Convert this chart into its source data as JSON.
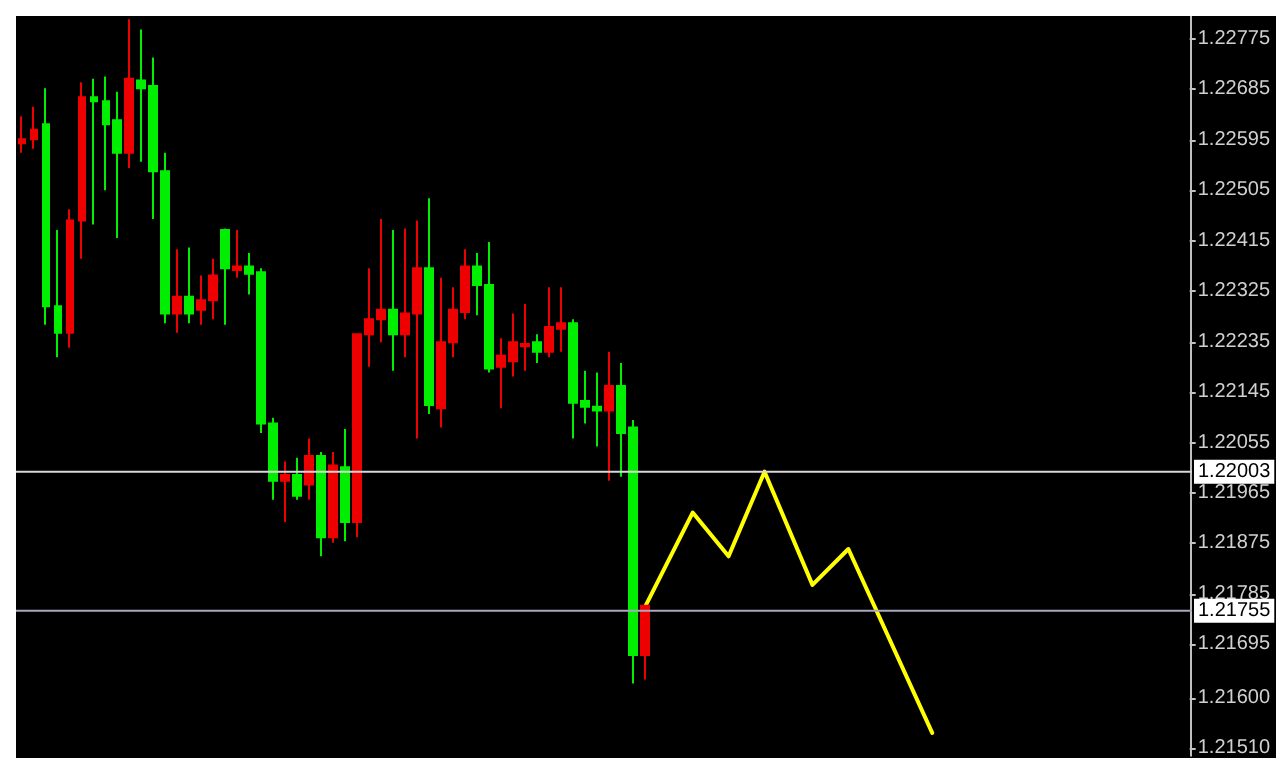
{
  "chart_data": {
    "type": "candlestick",
    "categories": [
      null,
      null,
      null,
      null,
      null,
      null,
      null,
      null,
      null,
      null,
      null,
      null,
      null,
      null,
      null,
      null,
      null,
      null,
      null,
      null,
      null,
      null,
      null,
      null,
      null,
      null,
      null,
      null,
      null,
      null,
      null,
      null,
      null,
      null,
      null,
      null,
      null,
      null,
      null,
      null,
      null,
      null,
      null,
      null,
      null,
      null,
      null,
      null,
      null,
      null,
      null,
      null,
      null,
      null,
      null,
      null,
      null,
      null,
      null,
      null,
      null,
      null,
      null,
      null,
      null,
      null,
      null,
      null,
      null,
      null,
      null,
      null,
      null,
      null,
      null,
      null,
      null,
      null,
      null,
      null,
      null,
      null,
      null,
      null,
      null,
      null,
      null,
      null,
      null,
      null,
      null,
      null,
      null,
      null,
      null,
      null,
      null,
      null
    ],
    "ohlc": [
      [
        1.22596,
        1.22637,
        1.22572,
        1.22589
      ],
      [
        1.22613,
        1.22654,
        1.22579,
        1.22596
      ],
      [
        1.22298,
        1.22687,
        1.22265,
        1.22623
      ],
      [
        1.22251,
        1.22434,
        1.22207,
        1.22298
      ],
      [
        1.22451,
        1.22471,
        1.22224,
        1.22251
      ],
      [
        1.22671,
        1.22698,
        1.22383,
        1.22451
      ],
      [
        1.22664,
        1.22704,
        1.22444,
        1.22671
      ],
      [
        1.22623,
        1.22708,
        1.22505,
        1.22664
      ],
      [
        1.22572,
        1.22681,
        1.2242,
        1.2263
      ],
      [
        1.22704,
        1.2281,
        1.22545,
        1.22572
      ],
      [
        1.22687,
        1.22792,
        1.22556,
        1.22701
      ],
      [
        1.22539,
        1.22742,
        1.22454,
        1.22691
      ],
      [
        1.22285,
        1.22572,
        1.22268,
        1.22539
      ],
      [
        1.22315,
        1.224,
        1.22251,
        1.22285
      ],
      [
        1.22285,
        1.22403,
        1.22268,
        1.22315
      ],
      [
        1.22309,
        1.22353,
        1.22265,
        1.22292
      ],
      [
        1.22353,
        1.22383,
        1.22275,
        1.22309
      ],
      [
        1.22366,
        1.22437,
        1.22265,
        1.22434
      ],
      [
        1.22369,
        1.22434,
        1.22349,
        1.22363
      ],
      [
        1.22356,
        1.22393,
        1.22319,
        1.22369
      ],
      [
        1.22089,
        1.22366,
        1.22072,
        1.22359
      ],
      [
        1.21987,
        1.22099,
        1.21953,
        1.22089
      ],
      [
        1.21997,
        1.22021,
        1.21913,
        1.21987
      ],
      [
        1.2196,
        1.22028,
        1.21953,
        1.21997
      ],
      [
        1.22031,
        1.22062,
        1.21953,
        1.2198
      ],
      [
        1.21886,
        1.22038,
        1.21852,
        1.22031
      ],
      [
        1.22014,
        1.22038,
        1.21876,
        1.21886
      ],
      [
        1.21913,
        1.22079,
        1.21879,
        1.22011
      ],
      [
        1.22248,
        1.22248,
        1.21886,
        1.21913
      ],
      [
        1.22275,
        1.22366,
        1.2219,
        1.22248
      ],
      [
        1.22292,
        1.22454,
        1.22234,
        1.22275
      ],
      [
        1.22248,
        1.22434,
        1.22183,
        1.22292
      ],
      [
        1.22285,
        1.22437,
        1.22207,
        1.22248
      ],
      [
        1.22366,
        1.22451,
        1.22062,
        1.22285
      ],
      [
        1.22122,
        1.22491,
        1.22106,
        1.22366
      ],
      [
        1.22234,
        1.22349,
        1.22082,
        1.22116
      ],
      [
        1.22292,
        1.22332,
        1.22207,
        1.22234
      ],
      [
        1.22369,
        1.224,
        1.22275,
        1.22288
      ],
      [
        1.22336,
        1.22393,
        1.22282,
        1.22369
      ],
      [
        1.22187,
        1.22413,
        1.2218,
        1.22336
      ],
      [
        1.2221,
        1.22241,
        1.22116,
        1.2219
      ],
      [
        1.22234,
        1.22285,
        1.22173,
        1.222
      ],
      [
        1.22231,
        1.22302,
        1.22183,
        1.22227
      ],
      [
        1.22217,
        1.22248,
        1.22197,
        1.22234
      ],
      [
        1.22261,
        1.22332,
        1.22207,
        1.22217
      ],
      [
        1.22268,
        1.22332,
        1.22217,
        1.22258
      ],
      [
        1.22126,
        1.22275,
        1.22062,
        1.22268
      ],
      [
        1.22119,
        1.22183,
        1.22089,
        1.22129
      ],
      [
        1.22112,
        1.2218,
        1.22048,
        1.22119
      ],
      [
        1.22156,
        1.22217,
        1.21987,
        1.22112
      ],
      [
        1.22072,
        1.22197,
        1.21994,
        1.22156
      ],
      [
        1.21676,
        1.22095,
        1.21625,
        1.22082
      ],
      [
        1.21764,
        1.21764,
        1.21632,
        1.21676
      ],
      null,
      null,
      null,
      null,
      null,
      null,
      null,
      null,
      null,
      null,
      null,
      null,
      null,
      null,
      null,
      null,
      null,
      null,
      null,
      null,
      null,
      null,
      null,
      null,
      null,
      null,
      null,
      null,
      null,
      null,
      null,
      null,
      null,
      null,
      null,
      null,
      null,
      null,
      null,
      null,
      null,
      null,
      null,
      null,
      null
    ],
    "colors": [
      "#ee0000",
      "#ee0000",
      "#00ee00",
      "#00ee00",
      "#ee0000",
      "#ee0000",
      "#00ee00",
      "#00ee00",
      "#00ee00",
      "#ee0000",
      "#00ee00",
      "#00ee00",
      "#00ee00",
      "#ee0000",
      "#00ee00",
      "#ee0000",
      "#ee0000",
      "#00ee00",
      "#ee0000",
      "#00ee00",
      "#00ee00",
      "#00ee00",
      "#ee0000",
      "#00ee00",
      "#ee0000",
      "#00ee00",
      "#ee0000",
      "#00ee00",
      "#ee0000",
      "#ee0000",
      "#ee0000",
      "#00ee00",
      "#ee0000",
      "#ee0000",
      "#00ee00",
      "#ee0000",
      "#ee0000",
      "#ee0000",
      "#00ee00",
      "#00ee00",
      "#ee0000",
      "#ee0000",
      "#ee0000",
      "#00ee00",
      "#ee0000",
      "#ee0000",
      "#00ee00",
      "#00ee00",
      "#00ee00",
      "#ee0000",
      "#00ee00",
      "#00ee00",
      "#ee0000",
      null,
      null,
      null,
      null,
      null,
      null,
      null,
      null,
      null,
      null,
      null,
      null,
      null,
      null,
      null,
      null,
      null,
      null,
      null,
      null,
      null,
      null,
      null,
      null,
      null,
      null,
      null,
      null,
      null,
      null,
      null,
      null,
      null,
      null,
      null,
      null,
      null,
      null,
      null,
      null,
      null,
      null,
      null,
      null,
      null
    ],
    "series": [
      {
        "type": "line",
        "color": "#ffff00",
        "values": [
          null,
          null,
          null,
          null,
          null,
          null,
          null,
          null,
          null,
          null,
          null,
          null,
          null,
          null,
          null,
          null,
          null,
          null,
          null,
          null,
          null,
          null,
          null,
          null,
          null,
          null,
          null,
          null,
          null,
          null,
          null,
          null,
          null,
          null,
          null,
          null,
          null,
          null,
          null,
          null,
          null,
          null,
          null,
          null,
          null,
          null,
          null,
          null,
          null,
          null,
          null,
          null,
          1.21761,
          null,
          null,
          null,
          1.2193,
          null,
          null,
          1.21852,
          null,
          null,
          1.22003,
          null,
          null,
          null,
          1.21801,
          null,
          null,
          1.21865,
          null,
          null,
          null,
          null,
          null,
          null,
          1.21537,
          null,
          null,
          null,
          null,
          null,
          null,
          null,
          null,
          null,
          null,
          null,
          null,
          null,
          null,
          null,
          null,
          null,
          null,
          null,
          null,
          null
        ]
      }
    ],
    "ylim": [
      1.21496,
      1.22816
    ],
    "yticks": [
      1.22775,
      1.22685,
      1.22595,
      1.22505,
      1.22415,
      1.22325,
      1.22235,
      1.22145,
      1.22055,
      1.21965,
      1.21875,
      1.21785,
      1.21695,
      {
        "value": 1.216,
        "label": "1.21600"
      },
      {
        "value": 1.2151,
        "label": "1.21510"
      }
    ],
    "ref_lines": [
      {
        "axis": "y",
        "value": 1.22003,
        "label": "1.22003",
        "color": "#d8d8d8"
      },
      {
        "axis": "y",
        "value": 1.21755,
        "label": "1.21755",
        "color": "#a8a8c0"
      }
    ],
    "tick_labels": "y",
    "grid": false,
    "line_style": "solid"
  }
}
